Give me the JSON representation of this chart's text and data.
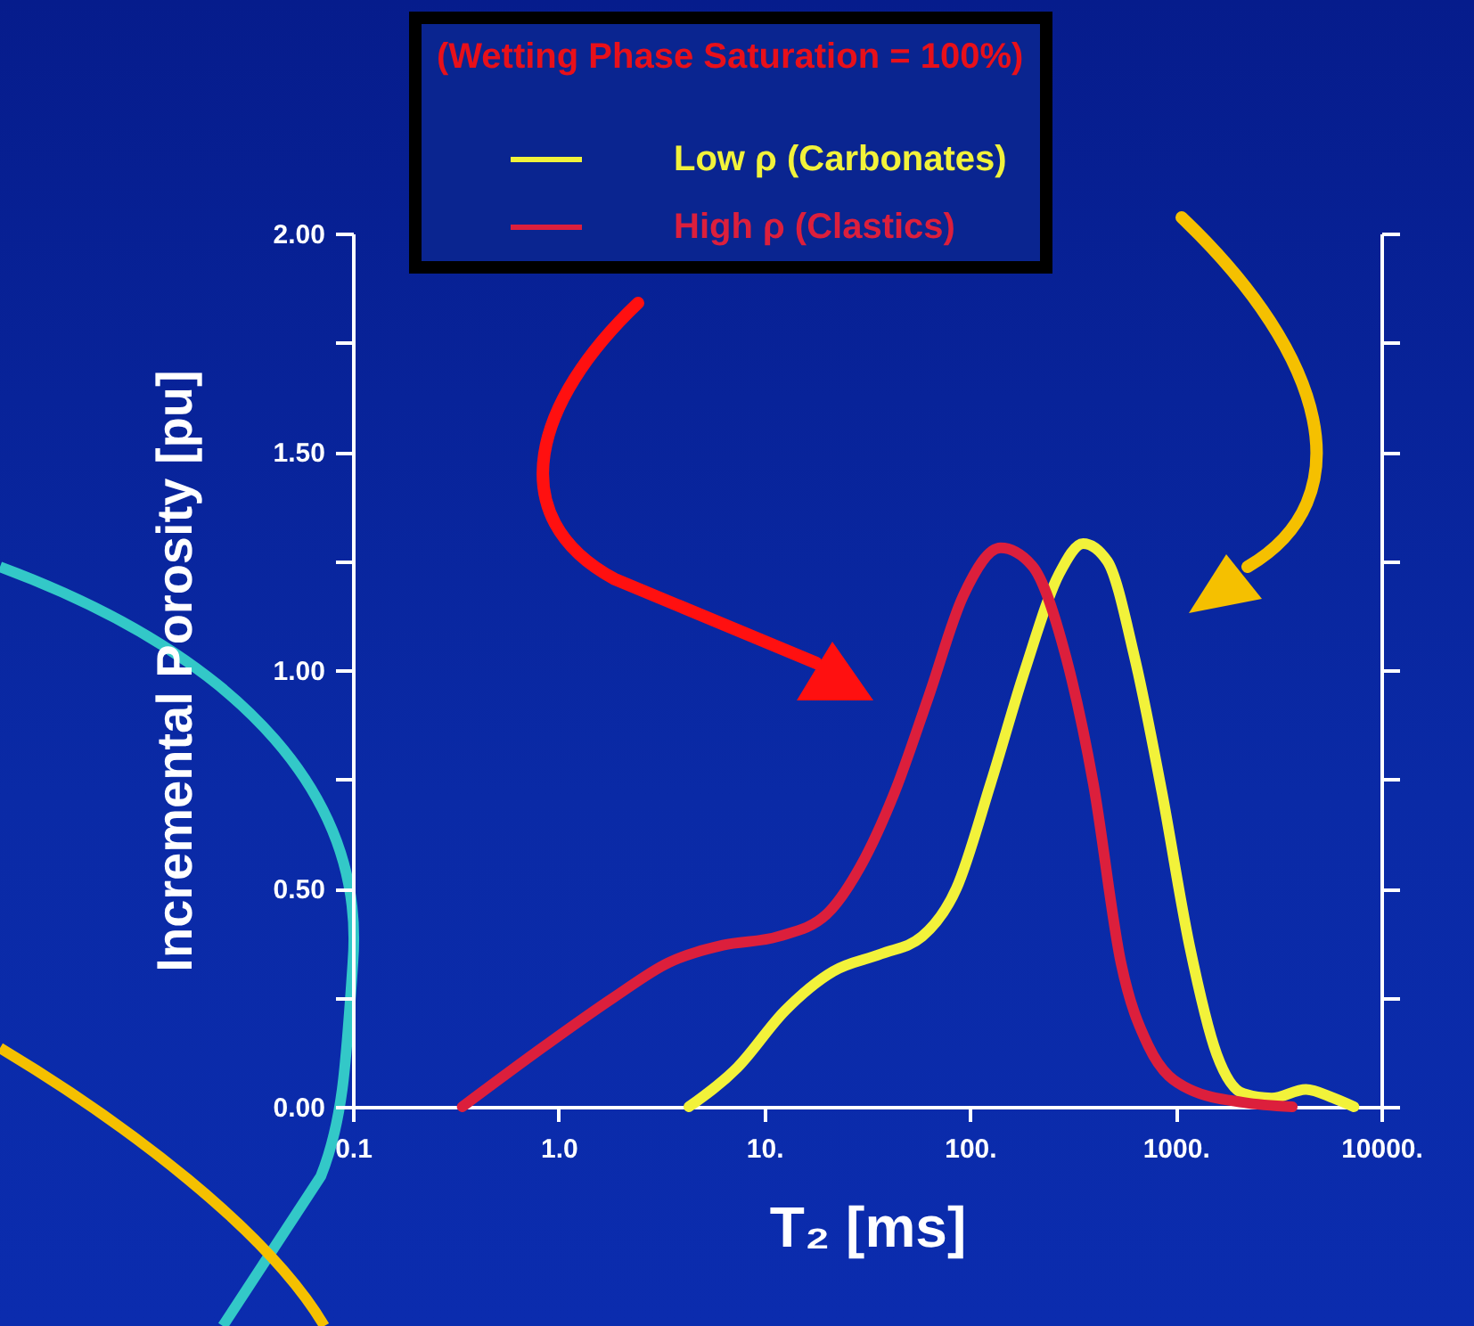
{
  "chart_data": {
    "type": "line",
    "xlabel": "T₂ [ms]",
    "ylabel": "Incremental Porosity [pu]",
    "legend_title": "(Wetting Phase Saturation = 100%)",
    "legend": "top",
    "log": "x",
    "xlim": [
      0.1,
      10000
    ],
    "xticks": [
      0.1,
      {
        "value": 1,
        "label": "1.0"
      },
      {
        "value": 10,
        "label": "10."
      },
      {
        "value": 100,
        "label": "100."
      },
      {
        "value": 1000,
        "label": "1000."
      },
      {
        "value": 10000,
        "label": "10000."
      }
    ],
    "ylim": [
      0,
      2
    ],
    "yticks": [
      {
        "value": 0,
        "label": "0.00"
      },
      {
        "value": 0.25,
        "label": null
      },
      {
        "value": 0.5,
        "label": "0.50"
      },
      {
        "value": 0.75,
        "label": null
      },
      {
        "value": 1,
        "label": "1.00"
      },
      {
        "value": 1.25,
        "label": null
      },
      {
        "value": 1.5,
        "label": "1.50"
      },
      {
        "value": 1.75,
        "label": null
      },
      {
        "value": 2,
        "label": "2.00"
      }
    ],
    "series": [
      {
        "name": "Low ρ  (Carbonates)",
        "color": "#f2f23a",
        "x": [
          4.3,
          7.4,
          12.6,
          21.6,
          36.9,
          58.5,
          85.9,
          126,
          185,
          271,
          355,
          465,
          631,
          858,
          1167,
          1585,
          2140,
          2930,
          4300,
          5850,
          7360
        ],
        "values": [
          0,
          0.09,
          0.22,
          0.31,
          0.35,
          0.39,
          0.5,
          0.74,
          1.0,
          1.22,
          1.29,
          1.25,
          1.03,
          0.72,
          0.37,
          0.12,
          0.03,
          0.02,
          0.04,
          0.02,
          0
        ]
      },
      {
        "name": "High ρ  (Clastics)",
        "color": "#dc1f3c",
        "x": [
          0.34,
          0.86,
          1.85,
          3.42,
          6.3,
          11.7,
          20,
          29.3,
          43,
          63,
          92.7,
          141,
          200,
          293,
          398,
          542,
          736,
          1167,
          2140,
          3690
        ],
        "values": [
          0,
          0.14,
          0.25,
          0.33,
          0.37,
          0.39,
          0.44,
          0.55,
          0.72,
          0.94,
          1.17,
          1.28,
          1.24,
          1.03,
          0.74,
          0.33,
          0.14,
          0.04,
          0.01,
          0
        ]
      }
    ]
  }
}
